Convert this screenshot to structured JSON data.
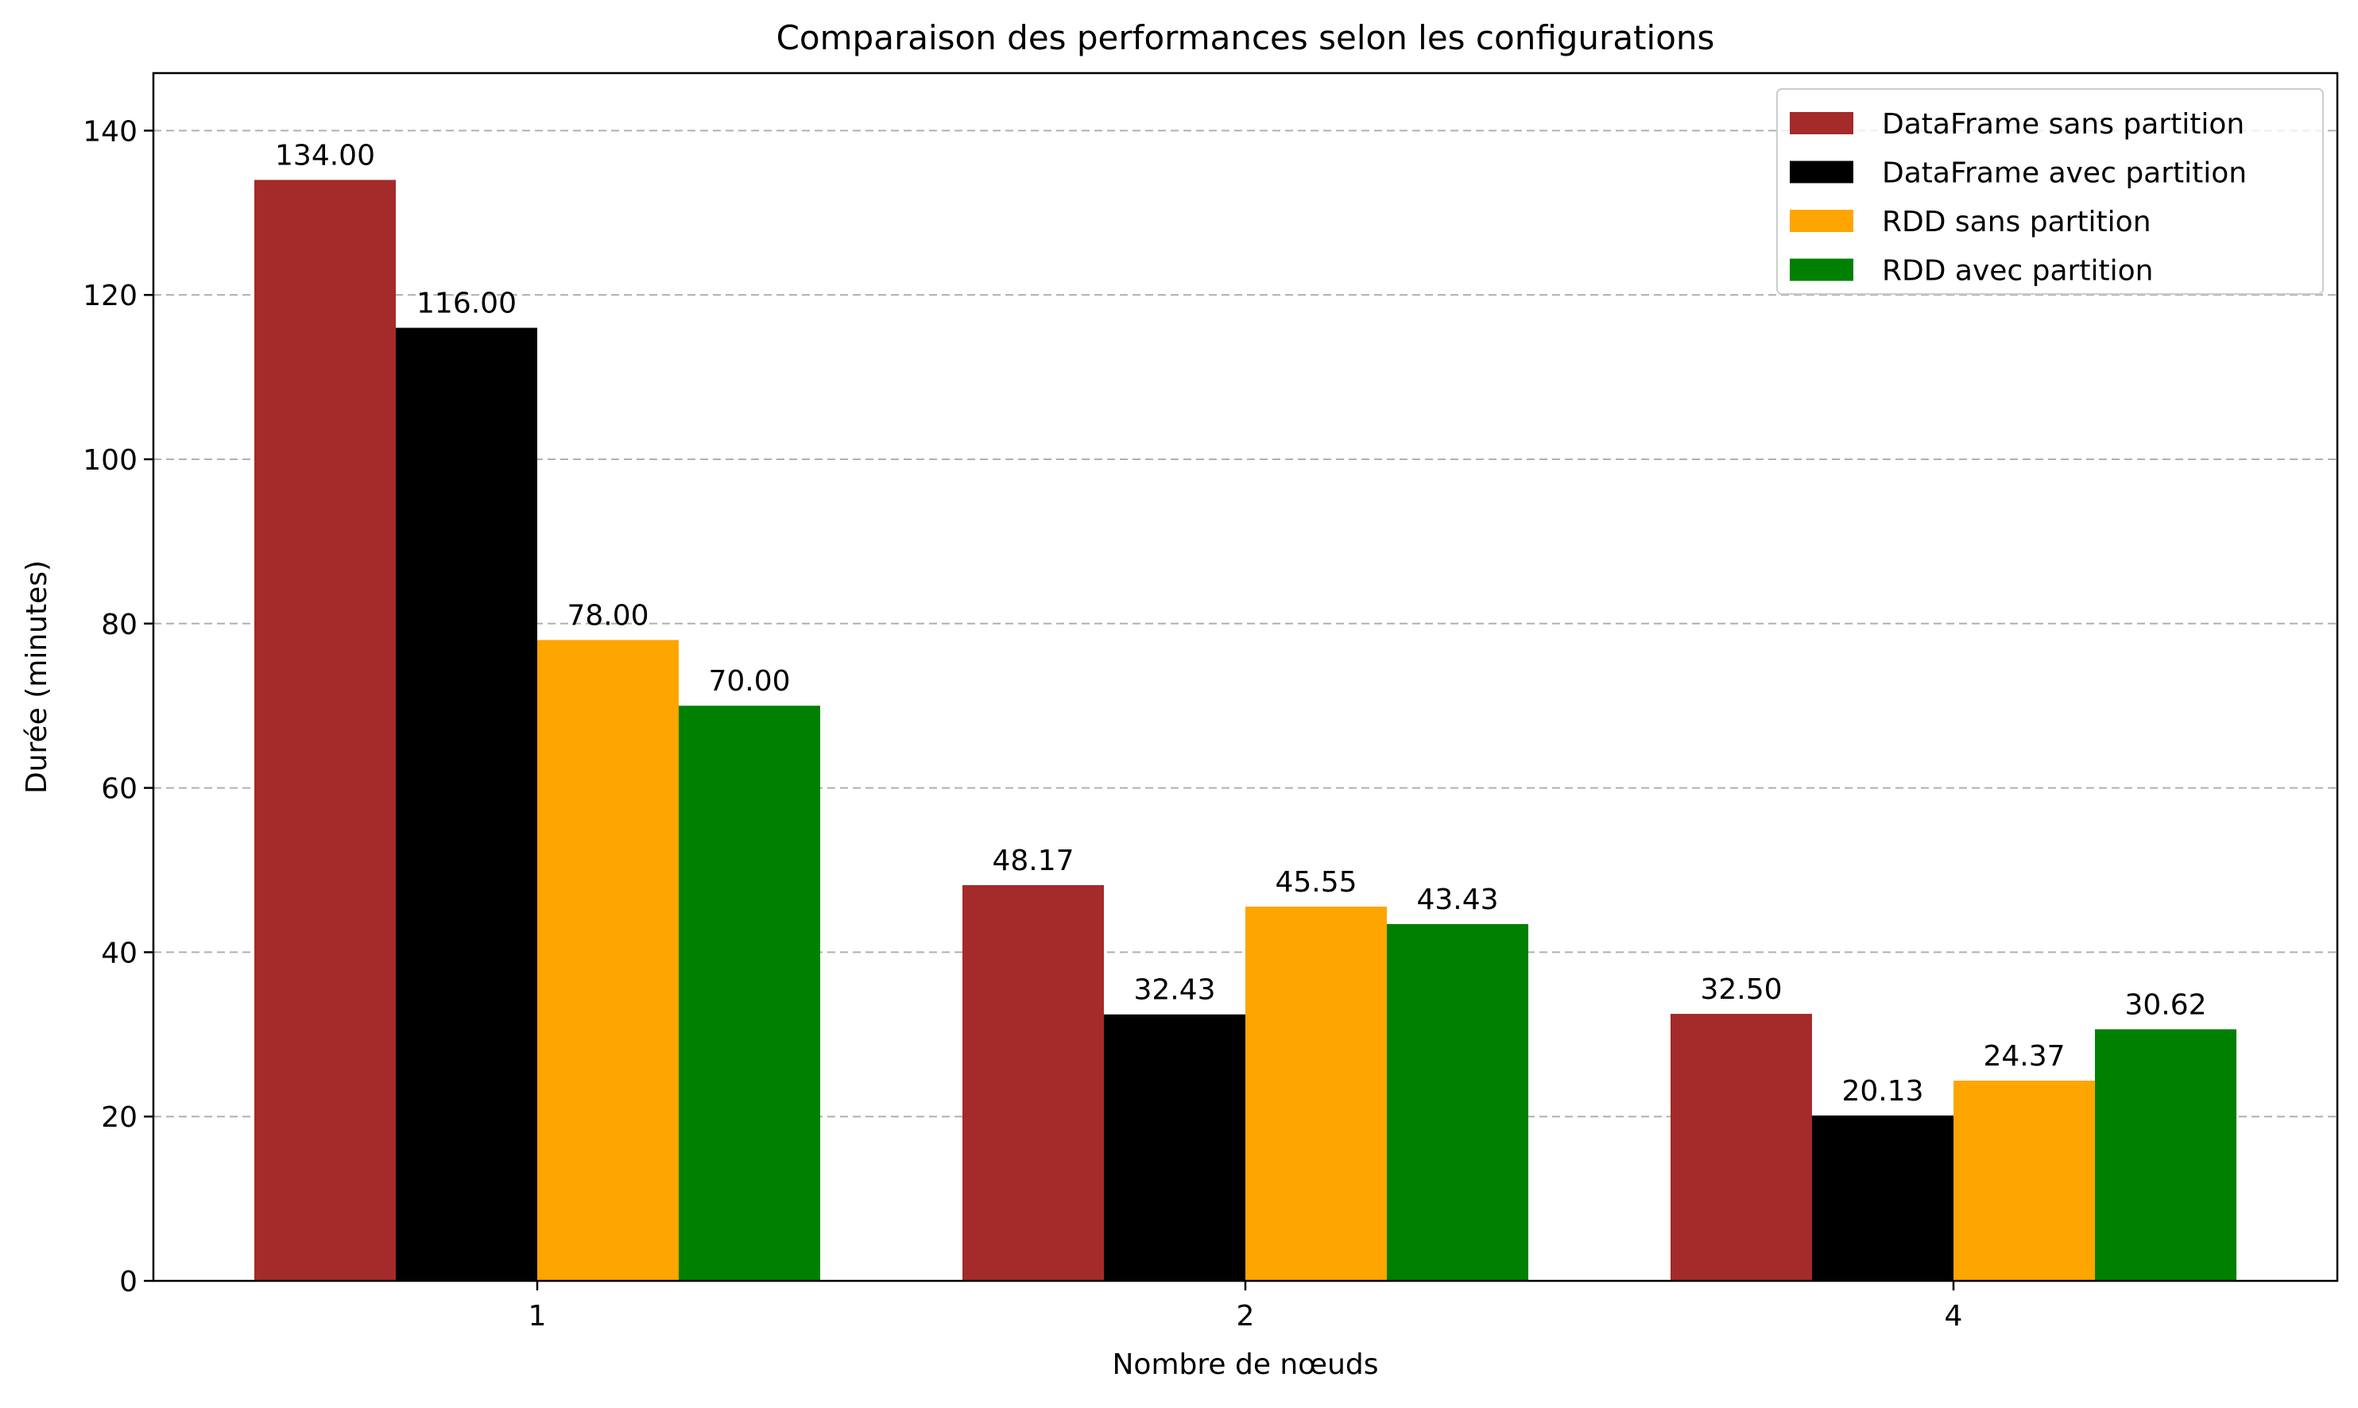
{
  "chart_data": {
    "type": "bar",
    "title": "Comparaison des performances selon les configurations",
    "xlabel": "Nombre de nœuds",
    "ylabel": "Durée (minutes)",
    "categories": [
      "1",
      "2",
      "4"
    ],
    "ylim": [
      0,
      147
    ],
    "yticks": [
      0,
      20,
      40,
      60,
      80,
      100,
      120,
      140
    ],
    "ytick_labels": [
      "0",
      "20",
      "40",
      "60",
      "80",
      "100",
      "120",
      "140"
    ],
    "grid": "y-dashed",
    "legend_position": "top-right",
    "series": [
      {
        "name": "DataFrame sans partition",
        "color": "#a52a2a",
        "values": [
          134.0,
          48.17,
          32.5
        ],
        "labels": [
          "134.00",
          "48.17",
          "32.50"
        ]
      },
      {
        "name": "DataFrame avec partition",
        "color": "#000000",
        "values": [
          116.0,
          32.43,
          20.13
        ],
        "labels": [
          "116.00",
          "32.43",
          "20.13"
        ]
      },
      {
        "name": "RDD sans partition",
        "color": "#ffa500",
        "values": [
          78.0,
          45.55,
          24.37
        ],
        "labels": [
          "78.00",
          "45.55",
          "24.37"
        ]
      },
      {
        "name": "RDD avec partition",
        "color": "#008000",
        "values": [
          70.0,
          43.43,
          30.62
        ],
        "labels": [
          "70.00",
          "43.43",
          "30.62"
        ]
      }
    ]
  }
}
